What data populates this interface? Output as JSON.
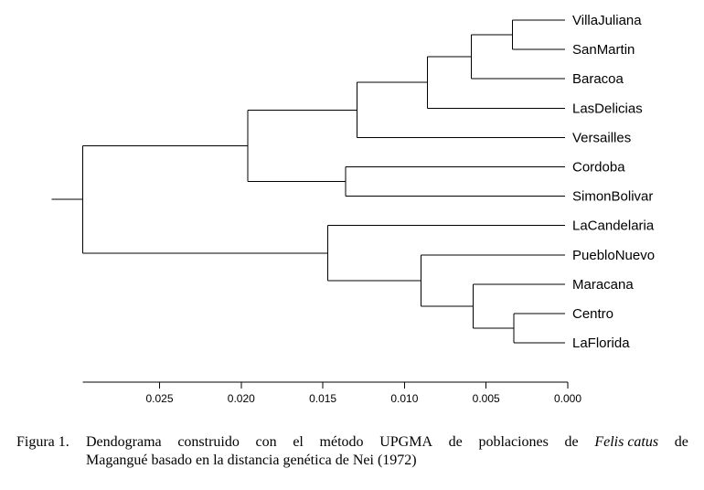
{
  "chart_data": {
    "type": "dendrogram",
    "leaves": [
      "VillaJuliana",
      "SanMartin",
      "Baracoa",
      "LasDelicias",
      "Versailles",
      "Cordoba",
      "SimonBolivar",
      "LaCandelaria",
      "PuebloNuevo",
      "Maracana",
      "Centro",
      "LaFlorida"
    ],
    "merges": [
      {
        "a": "VillaJuliana",
        "b": "SanMartin",
        "height": 0.0034
      },
      {
        "a": "Centro",
        "b": "LaFlorida",
        "height": 0.0033
      },
      {
        "a": "VillaJuliana+SanMartin",
        "b": "Baracoa",
        "height": 0.0059
      },
      {
        "a": "Maracana",
        "b": "Centro+LaFlorida",
        "height": 0.0058
      },
      {
        "a": "VillaJuliana+SanMartin+Baracoa",
        "b": "LasDelicias",
        "height": 0.0086
      },
      {
        "a": "PuebloNuevo",
        "b": "Maracana+Centro+LaFlorida",
        "height": 0.009
      },
      {
        "a": "VillaJuliana+SanMartin+Baracoa+LasDelicias",
        "b": "Versailles",
        "height": 0.0129
      },
      {
        "a": "Cordoba",
        "b": "SimonBolivar",
        "height": 0.0136
      },
      {
        "a": "LaCandelaria",
        "b": "PuebloNuevo+Maracana+Centro+LaFlorida",
        "height": 0.0147
      },
      {
        "a": "VillaJuliana+SanMartin+Baracoa+LasDelicias+Versailles",
        "b": "Cordoba+SimonBolivar",
        "height": 0.0196
      },
      {
        "a": "VillaJuliana+SanMartin+Baracoa+LasDelicias+Versailles+Cordoba+SimonBolivar",
        "b": "LaCandelaria+PuebloNuevo+Maracana+Centro+LaFlorida",
        "height": 0.0297
      }
    ],
    "root_stub_height": 0.0316,
    "axis": {
      "ticks": [
        0.025,
        0.02,
        0.015,
        0.01,
        0.005,
        0.0
      ],
      "tick_labels": [
        "0.025",
        "0.020",
        "0.015",
        "0.010",
        "0.005",
        "0.000"
      ],
      "range": [
        0.0,
        0.0297
      ],
      "direction": "reversed"
    }
  },
  "caption": {
    "label": "Figura 1.",
    "words": [
      "Dendograma",
      "construido",
      "con",
      "el",
      "método",
      "UPGMA",
      "de",
      "poblaciones",
      "de"
    ],
    "italic": "Felis catus",
    "words_after": [
      "de"
    ],
    "line2": "Magangué basado en la distancia genética de Nei (1972)"
  }
}
